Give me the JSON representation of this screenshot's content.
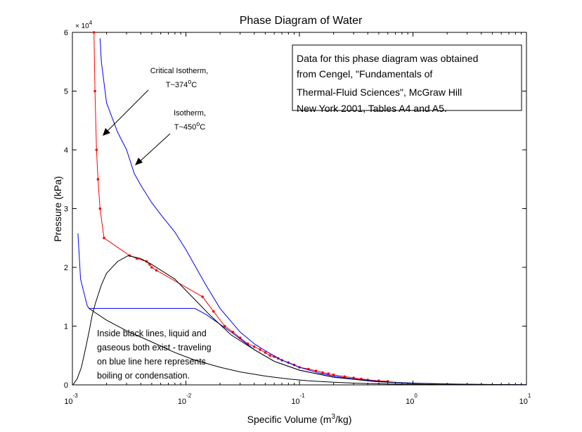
{
  "chart_data": {
    "type": "line",
    "title": "Phase Diagram of Water",
    "xlabel_pre": "Specific Volume (m",
    "xlabel_sup": "3",
    "xlabel_post": "/kg)",
    "ylabel": "Pressure (kPa)",
    "x_scale": "log",
    "xlim": [
      0.001,
      10
    ],
    "ylim": [
      0,
      60000
    ],
    "y_multiplier": "× 10",
    "y_multiplier_exp": "4",
    "x_ticks": [
      {
        "value": 0.001,
        "base": "10",
        "exp": "-3"
      },
      {
        "value": 0.01,
        "base": "10",
        "exp": "-2"
      },
      {
        "value": 0.1,
        "base": "10",
        "exp": "-1"
      },
      {
        "value": 1,
        "base": "10",
        "exp": "0"
      },
      {
        "value": 10,
        "base": "10",
        "exp": "1"
      }
    ],
    "y_ticks": [
      {
        "value": 0,
        "label": "0"
      },
      {
        "value": 10000,
        "label": "1"
      },
      {
        "value": 20000,
        "label": "2"
      },
      {
        "value": 30000,
        "label": "3"
      },
      {
        "value": 40000,
        "label": "4"
      },
      {
        "value": 50000,
        "label": "5"
      },
      {
        "value": 60000,
        "label": "6"
      }
    ],
    "grid": false,
    "legend": "none",
    "series": [
      {
        "color": "#ff0000",
        "marker": "dot",
        "x": [
          0.00155,
          0.00158,
          0.00163,
          0.00168,
          0.00175,
          0.0019,
          0.0032,
          0.0037,
          0.0045,
          0.0048,
          0.005,
          0.0055,
          0.014,
          0.0175,
          0.022,
          0.026,
          0.03,
          0.035,
          0.04,
          0.045,
          0.05,
          0.055,
          0.06,
          0.065,
          0.07,
          0.08,
          0.09,
          0.1,
          0.12,
          0.14,
          0.16,
          0.18,
          0.2,
          0.25,
          0.3,
          0.35,
          0.4,
          0.5,
          0.6
        ],
        "y": [
          60000,
          50000,
          40000,
          35000,
          30000,
          25000,
          22000,
          21500,
          21000,
          20500,
          20000,
          19500,
          15000,
          12500,
          10000,
          9000,
          8000,
          7000,
          6500,
          6000,
          5500,
          5000,
          4800,
          4500,
          4200,
          3800,
          3400,
          3000,
          2700,
          2400,
          2100,
          1900,
          1700,
          1400,
          1200,
          1000,
          850,
          700,
          600
        ]
      },
      {
        "color": "#0000ff",
        "marker": "none",
        "x": [
          0.00175,
          0.0018,
          0.002,
          0.0025,
          0.003,
          0.0035,
          0.004,
          0.005,
          0.006,
          0.008,
          0.01,
          0.015,
          0.02,
          0.03,
          0.04,
          0.05,
          0.07,
          0.1,
          0.15,
          0.2,
          0.3,
          0.5,
          0.7,
          1,
          2,
          5,
          10
        ],
        "y": [
          59000,
          55000,
          48000,
          43000,
          40000,
          36000,
          34000,
          31000,
          29000,
          26000,
          23000,
          17000,
          13000,
          9000,
          7000,
          5800,
          4200,
          3000,
          2000,
          1500,
          1000,
          600,
          430,
          300,
          150,
          60,
          30
        ]
      },
      {
        "color": "#0000ff",
        "marker": "none",
        "x": [
          0.00112,
          0.00118,
          0.00135,
          0.0014,
          0.012,
          0.015,
          0.025,
          0.04,
          0.06,
          0.1,
          0.2,
          0.5
        ],
        "y": [
          25800,
          18000,
          13500,
          13000,
          13000,
          12000,
          9000,
          6000,
          4000,
          2500,
          1300,
          500
        ]
      },
      {
        "color": "#000000",
        "marker": "none",
        "x": [
          0.00101,
          0.0011,
          0.0012,
          0.0013,
          0.0014,
          0.0015,
          0.0016,
          0.0018,
          0.002,
          0.0025,
          0.0031,
          0.004,
          0.005,
          0.008,
          0.012,
          0.016,
          0.025,
          0.04,
          0.06,
          0.1,
          0.2,
          0.5,
          1,
          3,
          10
        ],
        "y": [
          0,
          1000,
          3000,
          6000,
          9000,
          12000,
          14000,
          17000,
          19000,
          21000,
          22000,
          21500,
          20500,
          18000,
          14500,
          12000,
          8500,
          6000,
          4000,
          2500,
          1300,
          500,
          250,
          80,
          20
        ]
      },
      {
        "color": "#000000",
        "marker": "none",
        "x": [
          0.0014,
          0.002,
          0.003,
          0.005,
          0.008,
          0.012,
          0.02,
          0.03,
          0.05,
          0.08,
          0.12,
          0.2,
          0.35,
          0.6,
          1,
          2,
          5,
          10
        ],
        "y": [
          13000,
          11000,
          9200,
          7300,
          5500,
          4200,
          3000,
          2200,
          1500,
          1000,
          700,
          450,
          250,
          150,
          80,
          40,
          15,
          5
        ]
      }
    ],
    "annotations": {
      "critical_line1": "Critical Isotherm,",
      "critical_line2": "T~374",
      "critical_deg": "o",
      "critical_unit": "C",
      "isotherm_line1": "Isotherm,",
      "isotherm_line2": "T~450",
      "isotherm_deg": "o",
      "isotherm_unit": "C",
      "inside_line1": "Inside black lines, liquid and",
      "inside_line2": "gaseous both exist - traveling",
      "inside_line3": "on blue line here represents",
      "inside_line4": "boiling or condensation.",
      "source_line1": "Data for this phase diagram was obtained",
      "source_line2": "from Cengel, \"Fundamentals of",
      "source_line3": "Thermal-Fluid Sciences\", McGraw Hill",
      "source_line4": "New York 2001, Tables A4 and A5."
    }
  }
}
